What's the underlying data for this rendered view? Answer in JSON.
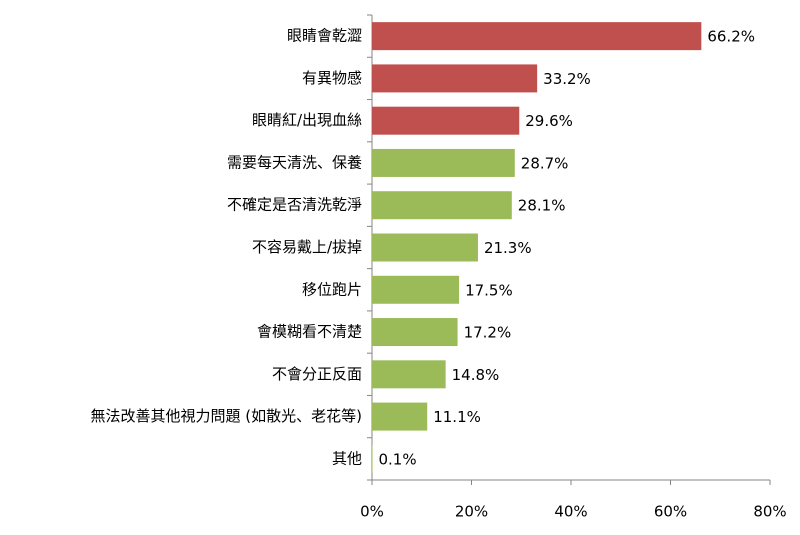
{
  "chart_data": {
    "type": "bar",
    "orientation": "horizontal",
    "categories": [
      "眼睛會乾澀",
      "有異物感",
      "眼睛紅/出現血絲",
      "需要每天清洗、保養",
      "不確定是否清洗乾淨",
      "不容易戴上/拔掉",
      "移位跑片",
      "會模糊看不清楚",
      "不會分正反面",
      "無法改善其他視力問題 (如散光、老花等)",
      "其他"
    ],
    "values": [
      66.2,
      33.2,
      29.6,
      28.7,
      28.1,
      21.3,
      17.5,
      17.2,
      14.8,
      11.1,
      0.1
    ],
    "value_labels": [
      "66.2%",
      "33.2%",
      "29.6%",
      "28.7%",
      "28.1%",
      "21.3%",
      "17.5%",
      "17.2%",
      "14.8%",
      "11.1%",
      "0.1%"
    ],
    "colors": [
      "#c0504d",
      "#c0504d",
      "#c0504d",
      "#9bbb59",
      "#9bbb59",
      "#9bbb59",
      "#9bbb59",
      "#9bbb59",
      "#9bbb59",
      "#9bbb59",
      "#9bbb59"
    ],
    "xlim": [
      0,
      80
    ],
    "xticks": [
      {
        "value": 0,
        "label": "0%"
      },
      {
        "value": 20,
        "label": "20%"
      },
      {
        "value": 40,
        "label": "40%"
      },
      {
        "value": 60,
        "label": "60%"
      },
      {
        "value": 80,
        "label": "80%"
      }
    ],
    "grid": false
  }
}
